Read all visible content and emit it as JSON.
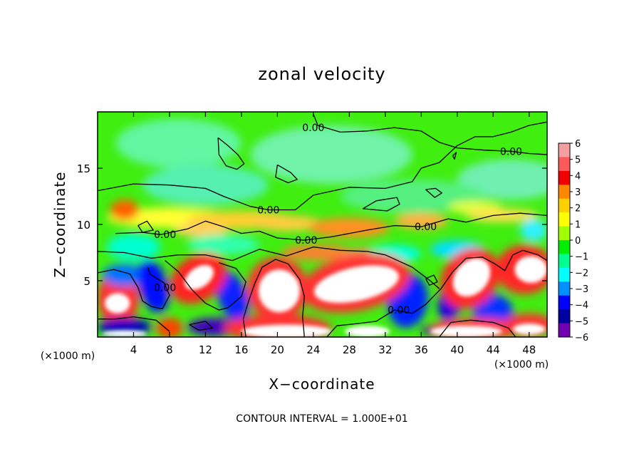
{
  "chart_data": {
    "type": "heatmap",
    "title": "zonal velocity",
    "xlabel": "X−coordinate",
    "ylabel": "Z−coordinate",
    "x_unit_left": "(×1000 m)",
    "x_unit_right": "(×1000 m)",
    "xlim": [
      0,
      50
    ],
    "ylim": [
      0,
      20
    ],
    "x_ticks": [
      4,
      8,
      12,
      16,
      20,
      24,
      28,
      32,
      36,
      40,
      44,
      48
    ],
    "x_tick_labels": [
      "4",
      "8",
      "12",
      "16",
      "20",
      "24",
      "28",
      "32",
      "36",
      "40",
      "44",
      "48"
    ],
    "y_ticks": [
      5,
      10,
      15
    ],
    "y_tick_labels": [
      "5",
      "10",
      "15"
    ],
    "grid": false,
    "colorbar": {
      "levels": [
        6,
        5,
        4,
        3,
        2,
        1,
        0,
        -1,
        -2,
        -3,
        -4,
        -5,
        -6
      ],
      "labels": [
        "6",
        "5",
        "4",
        "3",
        "2",
        "1",
        "0",
        "−1",
        "−2",
        "−3",
        "−4",
        "−5",
        "−6"
      ],
      "colors": [
        "#f4a0a0",
        "#ff5a5a",
        "#f00000",
        "#ff8800",
        "#ffd000",
        "#ffff00",
        "#a0ff00",
        "#00ee00",
        "#00ff90",
        "#00ffff",
        "#0090ff",
        "#0000ff",
        "#0000a0",
        "#7000b0"
      ]
    },
    "contour_labels": [
      {
        "x": 19.0,
        "z": 11.3,
        "text": "0.00"
      },
      {
        "x": 7.5,
        "z": 9.1,
        "text": "0.00"
      },
      {
        "x": 7.5,
        "z": 4.4,
        "text": "0.00"
      },
      {
        "x": 23.2,
        "z": 8.6,
        "text": "0.00"
      },
      {
        "x": 24.0,
        "z": 18.6,
        "text": "0.00"
      },
      {
        "x": 46.0,
        "z": 16.5,
        "text": "0.00"
      },
      {
        "x": 36.5,
        "z": 9.8,
        "text": "0.00"
      },
      {
        "x": 33.5,
        "z": 2.4,
        "text": "0.00"
      }
    ],
    "contour_interval_note": "CONTOUR INTERVAL = 1.000E+01"
  }
}
